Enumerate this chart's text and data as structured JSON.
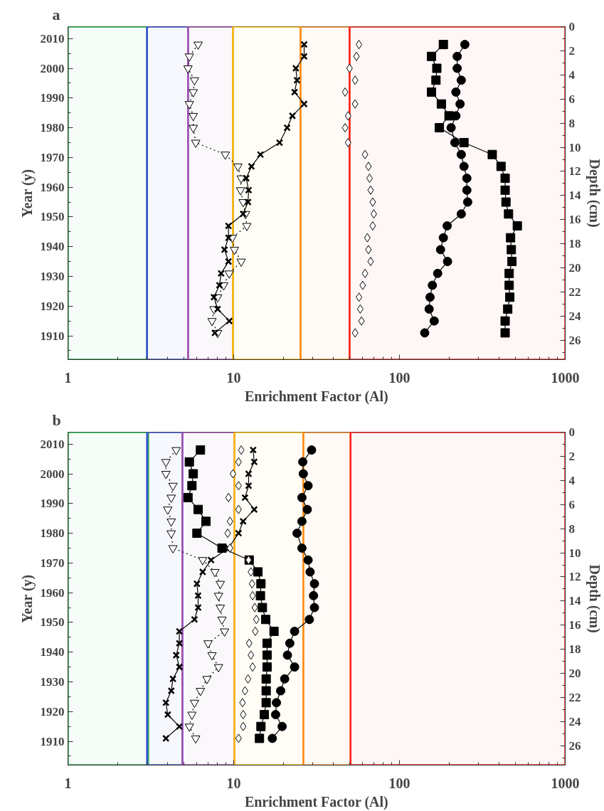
{
  "chart_data": [
    {
      "type": "line",
      "title": "a",
      "xlabel": "Enrichment Factor (Al)",
      "ylabel": "Year (y)",
      "y2label": "Depth (cm)",
      "log": "x",
      "grid": false,
      "xlim": [
        1,
        1000
      ],
      "xticks": [
        1,
        10,
        100,
        1000
      ],
      "ylim": [
        1902,
        2014
      ],
      "yticks": [
        1910,
        1920,
        1930,
        1940,
        1950,
        1960,
        1970,
        1980,
        1990,
        2000,
        2010
      ],
      "y2lim": [
        27.6,
        0
      ],
      "y2ticks": [
        0,
        2,
        4,
        6,
        8,
        10,
        12,
        14,
        16,
        18,
        20,
        22,
        24,
        26
      ],
      "bands": [
        {
          "axis": "x",
          "from": 1,
          "to": 3,
          "color": "#22b14c"
        },
        {
          "axis": "x",
          "from": 3,
          "to": 5.3,
          "color": "#3a4fd8"
        },
        {
          "axis": "x",
          "from": 5.3,
          "to": 9.9,
          "color": "#a44fb0"
        },
        {
          "axis": "x",
          "from": 9.9,
          "to": 25.3,
          "color": "#ffc000"
        },
        {
          "axis": "x",
          "from": 25.3,
          "to": 50,
          "color": "#ff8a1e"
        },
        {
          "axis": "x",
          "from": 50,
          "to": 1000,
          "color": "#ff2020"
        }
      ],
      "series": [
        {
          "type": "line",
          "marker": "triangle",
          "line_style": "dotted",
          "color": "#000000",
          "x": [
            6.1,
            5.4,
            5.3,
            5.8,
            5.7,
            5.4,
            5.7,
            5.7,
            5.9,
            8.9,
            10.6,
            11.1,
            11.0,
            11.4,
            11.8,
            12.0,
            9.8,
            10.1,
            11.1,
            9.4,
            8.7,
            8.0,
            7.6,
            7.4,
            8.0
          ],
          "values": [
            2008,
            2004,
            2000,
            1996,
            1992,
            1988,
            1984,
            1980,
            1975,
            1971,
            1967,
            1963,
            1959,
            1955,
            1951,
            1947,
            1943,
            1939,
            1935,
            1931,
            1927,
            1923,
            1919,
            1915,
            1911
          ]
        },
        {
          "type": "line",
          "marker": "cross",
          "line_style": "solid",
          "color": "#000000",
          "x": [
            26.6,
            26.6,
            23.7,
            24.1,
            23.3,
            26.6,
            22.6,
            21.0,
            18.9,
            14.5,
            12.8,
            11.9,
            12.3,
            12.2,
            11.4,
            9.3,
            9.3,
            8.8,
            9.3,
            8.4,
            8.2,
            7.6,
            8.0,
            9.4,
            7.7
          ],
          "values": [
            2008,
            2004,
            2000,
            1996,
            1992,
            1988,
            1984,
            1980,
            1975,
            1971,
            1967,
            1963,
            1959,
            1955,
            1951,
            1947,
            1943,
            1939,
            1935,
            1931,
            1927,
            1923,
            1919,
            1915,
            1911
          ]
        },
        {
          "type": "line",
          "marker": "square",
          "line_style": "solid",
          "color": "#000000",
          "x": [
            184,
            156,
            168,
            166,
            156,
            179,
            199,
            174,
            245,
            363,
            410,
            434,
            434,
            439,
            455,
            514,
            468,
            473,
            477,
            459,
            459,
            463,
            450,
            434,
            434
          ],
          "values": [
            2008,
            2004,
            2000,
            1996,
            1992,
            1988,
            1984,
            1980,
            1975,
            1971,
            1967,
            1963,
            1959,
            1955,
            1951,
            1947,
            1943,
            1939,
            1935,
            1931,
            1927,
            1923,
            1919,
            1915,
            1911
          ]
        },
        {
          "type": "line",
          "marker": "circle",
          "line_style": "solid",
          "color": "#000000",
          "x": [
            248,
            223,
            223,
            236,
            219,
            232,
            219,
            205,
            216,
            236,
            245,
            255,
            255,
            258,
            236,
            194,
            184,
            177,
            195,
            170,
            158,
            153,
            151,
            162,
            142
          ],
          "values": [
            2008,
            2004,
            2000,
            1996,
            1992,
            1988,
            1984,
            1980,
            1975,
            1971,
            1967,
            1963,
            1959,
            1955,
            1951,
            1947,
            1943,
            1939,
            1935,
            1931,
            1927,
            1923,
            1919,
            1915,
            1911
          ]
        },
        {
          "type": "scatter",
          "marker": "diamond",
          "color": "#000000",
          "x": [
            57,
            55,
            50,
            54,
            47,
            54,
            49,
            47,
            49,
            62,
            65,
            66,
            67,
            69,
            70,
            69,
            64,
            65,
            67,
            62,
            60,
            57,
            58,
            59,
            54
          ],
          "values": [
            2008,
            2004,
            2000,
            1996,
            1992,
            1988,
            1984,
            1980,
            1975,
            1971,
            1967,
            1963,
            1959,
            1955,
            1951,
            1947,
            1943,
            1939,
            1935,
            1931,
            1927,
            1923,
            1919,
            1915,
            1911
          ]
        }
      ]
    },
    {
      "type": "line",
      "title": "b",
      "xlabel": "Enrichment Factor (Al)",
      "ylabel": "Year (y)",
      "y2label": "Depth (cm)",
      "log": "x",
      "grid": false,
      "xlim": [
        1,
        1000
      ],
      "xticks": [
        1,
        10,
        100,
        1000
      ],
      "ylim": [
        1902,
        2014
      ],
      "yticks": [
        1910,
        1920,
        1930,
        1940,
        1950,
        1960,
        1970,
        1980,
        1990,
        2000,
        2010
      ],
      "y2lim": [
        27.6,
        0
      ],
      "y2ticks": [
        0,
        2,
        4,
        6,
        8,
        10,
        12,
        14,
        16,
        18,
        20,
        22,
        24,
        26
      ],
      "bands": [
        {
          "axis": "x",
          "from": 1,
          "to": 3.05,
          "color": "#22b14c"
        },
        {
          "axis": "x",
          "from": 3,
          "to": 4.9,
          "color": "#3a4fd8"
        },
        {
          "axis": "x",
          "from": 4.9,
          "to": 10.1,
          "color": "#a44fb0"
        },
        {
          "axis": "x",
          "from": 10.1,
          "to": 26.3,
          "color": "#ffc000"
        },
        {
          "axis": "x",
          "from": 26.3,
          "to": 50.7,
          "color": "#ff8a1e"
        },
        {
          "axis": "x",
          "from": 50.7,
          "to": 1000,
          "color": "#ff2020"
        }
      ],
      "series": [
        {
          "type": "line",
          "marker": "triangle",
          "line_style": "dotted",
          "color": "#000000",
          "x": [
            4.5,
            3.9,
            3.9,
            4.3,
            4.2,
            4.0,
            4.2,
            4.2,
            4.3,
            6.5,
            7.7,
            8.3,
            8.1,
            8.3,
            8.5,
            8.8,
            7.0,
            7.4,
            8.1,
            6.9,
            6.3,
            5.8,
            5.6,
            5.4,
            5.9
          ],
          "values": [
            2008,
            2004,
            2000,
            1996,
            1992,
            1988,
            1984,
            1980,
            1975,
            1971,
            1967,
            1963,
            1959,
            1955,
            1951,
            1947,
            1943,
            1939,
            1935,
            1931,
            1927,
            1923,
            1919,
            1915,
            1911
          ]
        },
        {
          "type": "line",
          "marker": "cross",
          "line_style": "solid",
          "color": "#000000",
          "x": [
            13.1,
            13.3,
            12.3,
            12.3,
            11.7,
            13.3,
            11.4,
            10.7,
            9.3,
            7.3,
            6.5,
            6.0,
            6.1,
            6.1,
            5.8,
            4.7,
            4.7,
            4.5,
            4.7,
            4.3,
            4.2,
            3.9,
            4.0,
            4.7,
            3.9
          ],
          "values": [
            2008,
            2004,
            2000,
            1996,
            1992,
            1988,
            1984,
            1980,
            1975,
            1971,
            1967,
            1963,
            1959,
            1955,
            1951,
            1947,
            1943,
            1939,
            1935,
            1931,
            1927,
            1923,
            1919,
            1915,
            1911
          ]
        },
        {
          "type": "line",
          "marker": "square",
          "line_style": "solid",
          "color": "#000000",
          "x": [
            6.3,
            5.4,
            5.7,
            5.6,
            5.3,
            6.1,
            6.8,
            6.0,
            8.5,
            12.4,
            14.0,
            14.6,
            14.5,
            14.9,
            15.6,
            17.5,
            15.9,
            15.9,
            15.9,
            15.7,
            15.7,
            15.7,
            15.3,
            14.6,
            14.3
          ],
          "values": [
            2008,
            2004,
            2000,
            1996,
            1992,
            1988,
            1984,
            1980,
            1975,
            1971,
            1967,
            1963,
            1959,
            1955,
            1951,
            1947,
            1943,
            1939,
            1935,
            1931,
            1927,
            1923,
            1919,
            1915,
            1911
          ]
        },
        {
          "type": "line",
          "marker": "circle",
          "line_style": "solid",
          "color": "#000000",
          "x": [
            29.5,
            26.1,
            26.3,
            28.1,
            25.8,
            27.8,
            25.8,
            24.1,
            25.8,
            28.1,
            28.9,
            30.7,
            30.3,
            30.7,
            28.6,
            23.3,
            21.8,
            21.1,
            23.3,
            20.3,
            19.2,
            18.1,
            17.9,
            19.6,
            17.1
          ],
          "values": [
            2008,
            2004,
            2000,
            1996,
            1992,
            1988,
            1984,
            1980,
            1975,
            1971,
            1967,
            1963,
            1959,
            1955,
            1951,
            1947,
            1943,
            1939,
            1935,
            1931,
            1927,
            1923,
            1919,
            1915,
            1911
          ]
        },
        {
          "type": "scatter",
          "marker": "diamond",
          "color": "#000000",
          "x": [
            11.1,
            10.7,
            9.9,
            10.7,
            9.3,
            10.7,
            9.5,
            9.2,
            9.5,
            12.3,
            12.7,
            12.9,
            13.0,
            13.4,
            13.7,
            13.5,
            12.4,
            12.7,
            13.0,
            12.2,
            11.7,
            11.3,
            11.4,
            11.4,
            10.7
          ],
          "values": [
            2008,
            2004,
            2000,
            1996,
            1992,
            1988,
            1984,
            1980,
            1975,
            1971,
            1967,
            1963,
            1959,
            1955,
            1951,
            1947,
            1943,
            1939,
            1935,
            1931,
            1927,
            1923,
            1919,
            1915,
            1911
          ]
        }
      ]
    }
  ]
}
